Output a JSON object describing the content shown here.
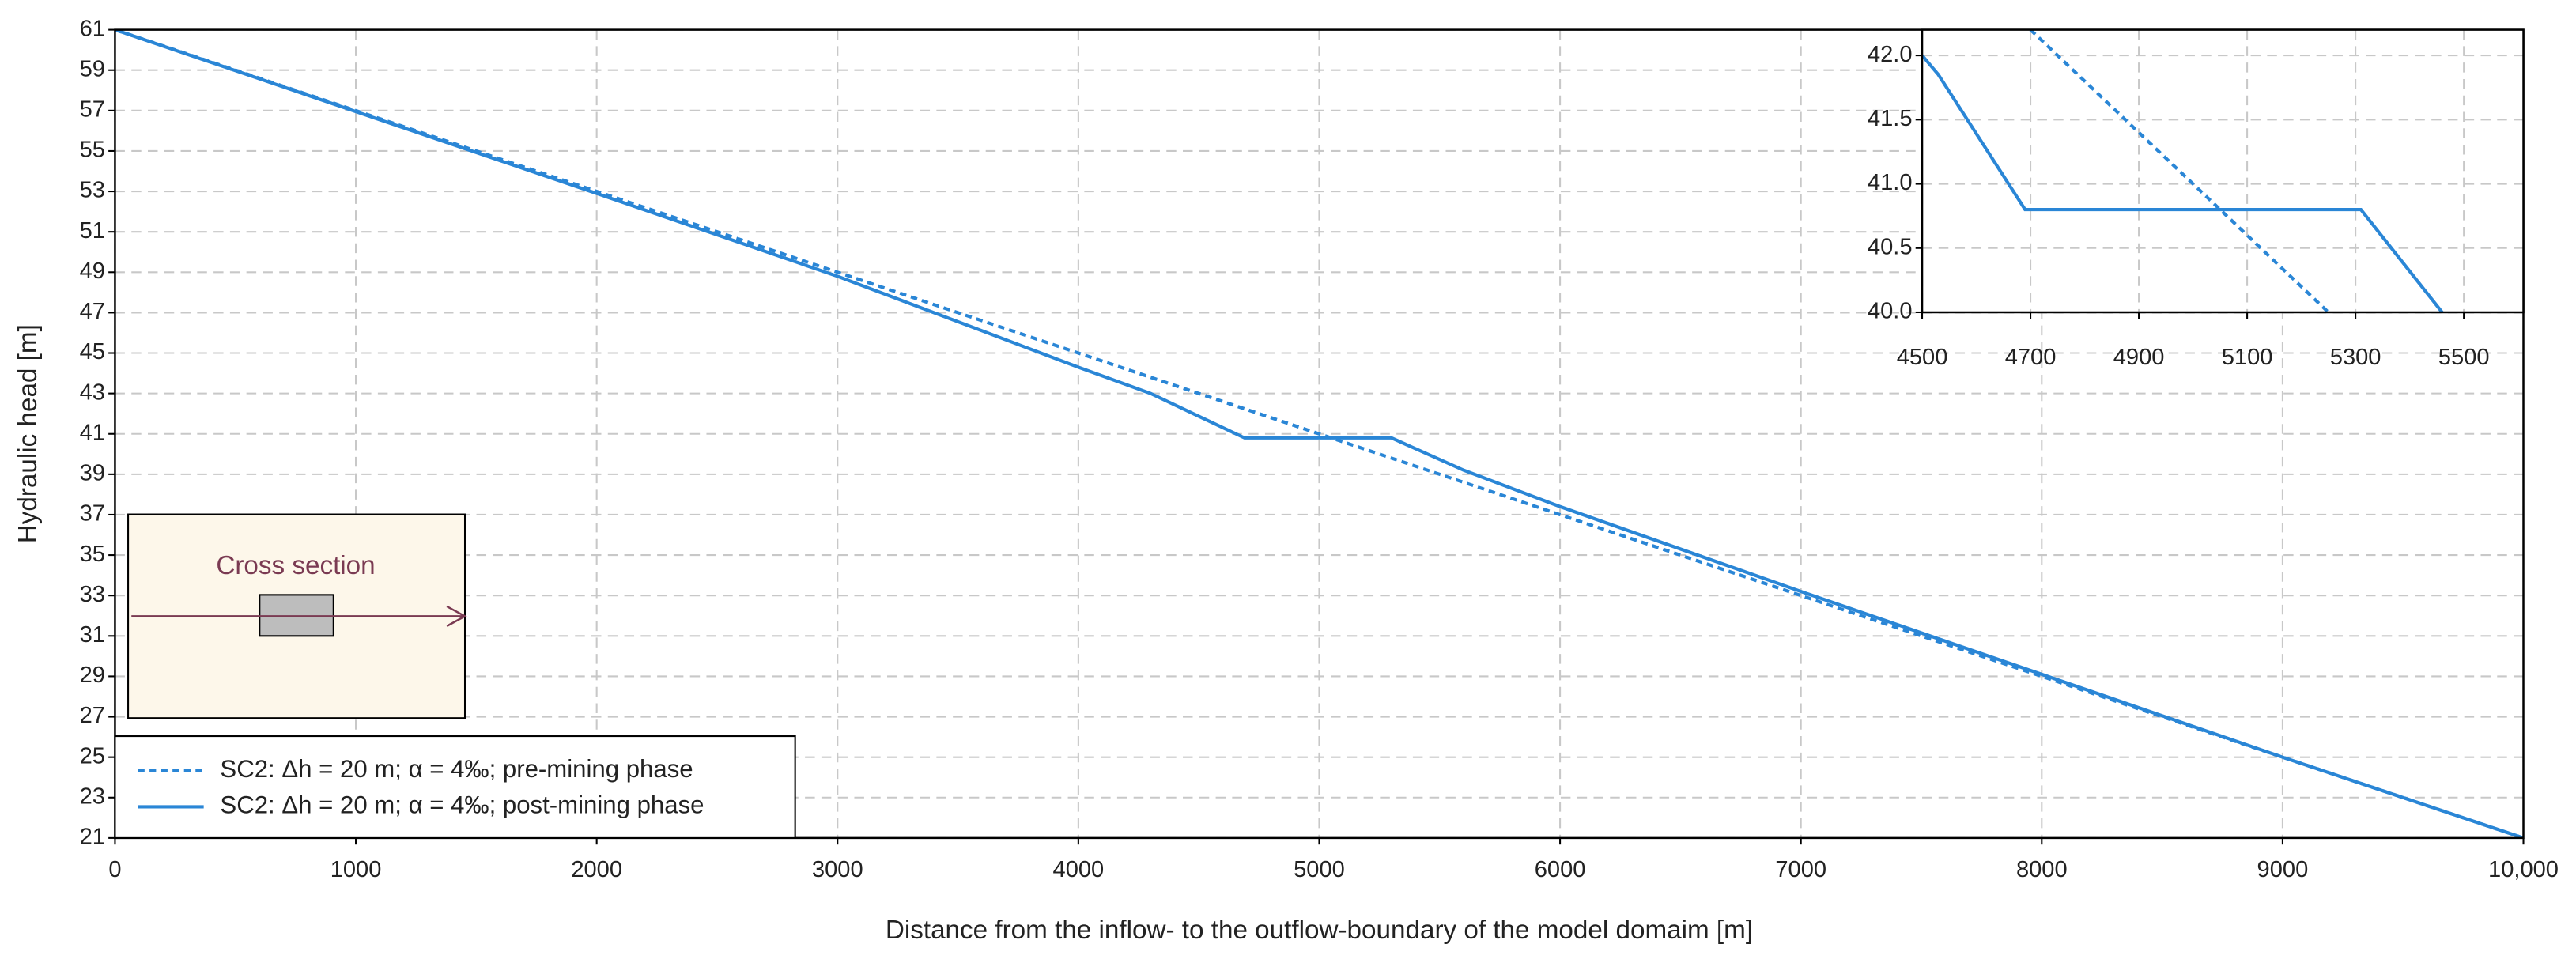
{
  "chart_data": [
    {
      "type": "line",
      "xlabel": "Distance from the inflow- to the outflow-boundary of the model domaim [m]",
      "ylabel": "Hydraulic head [m]",
      "annotation": "Cross section",
      "xlim": [
        0,
        10000
      ],
      "ylim": [
        21,
        61
      ],
      "xticks": [
        0,
        1000,
        2000,
        3000,
        4000,
        5000,
        6000,
        7000,
        8000,
        9000,
        {
          "value": 10000,
          "label": "10,000"
        }
      ],
      "yticks": [
        21,
        23,
        25,
        27,
        29,
        31,
        33,
        35,
        37,
        39,
        41,
        43,
        45,
        47,
        49,
        51,
        53,
        55,
        57,
        59,
        61
      ],
      "grid": true,
      "legend": "lower left",
      "series": [
        {
          "name": "SC2: Δh = 20 m; α = 4‰; pre-mining phase",
          "color": "#2a86d6",
          "style": "dotted",
          "x": [
            0,
            10000
          ],
          "values": [
            61,
            21
          ]
        },
        {
          "name": "SC2: Δh = 20 m; α = 4‰; post-mining phase",
          "color": "#2a86d6",
          "style": "solid",
          "x": [
            0,
            2000,
            3000,
            4000,
            4300,
            4690,
            5300,
            5600,
            6000,
            7000,
            8000,
            9000,
            10000
          ],
          "values": [
            61,
            52.9,
            48.8,
            44.3,
            43,
            40.8,
            40.8,
            39.2,
            37.4,
            33.2,
            29.1,
            25,
            21
          ]
        }
      ]
    },
    {
      "type": "line",
      "xlim": [
        4500,
        5610
      ],
      "ylim": [
        40,
        42.2
      ],
      "xticks": [
        4500,
        4700,
        4900,
        5100,
        5300,
        5500
      ],
      "yticks": [
        {
          "value": 40,
          "label": "40.0"
        },
        {
          "value": 40.5,
          "label": "40.5"
        },
        {
          "value": 41,
          "label": "41.0"
        },
        {
          "value": 41.5,
          "label": "41.5"
        },
        {
          "value": 42,
          "label": "42.0"
        }
      ],
      "grid": true,
      "series": [
        {
          "color": "#2a86d6",
          "style": "dotted",
          "x": [
            4700,
            5250
          ],
          "values": [
            42.2,
            40
          ]
        },
        {
          "color": "#2a86d6",
          "style": "solid",
          "x": [
            4500,
            4530,
            4690,
            5310,
            5460
          ],
          "values": [
            42.0,
            41.85,
            40.8,
            40.8,
            40
          ]
        }
      ]
    }
  ]
}
